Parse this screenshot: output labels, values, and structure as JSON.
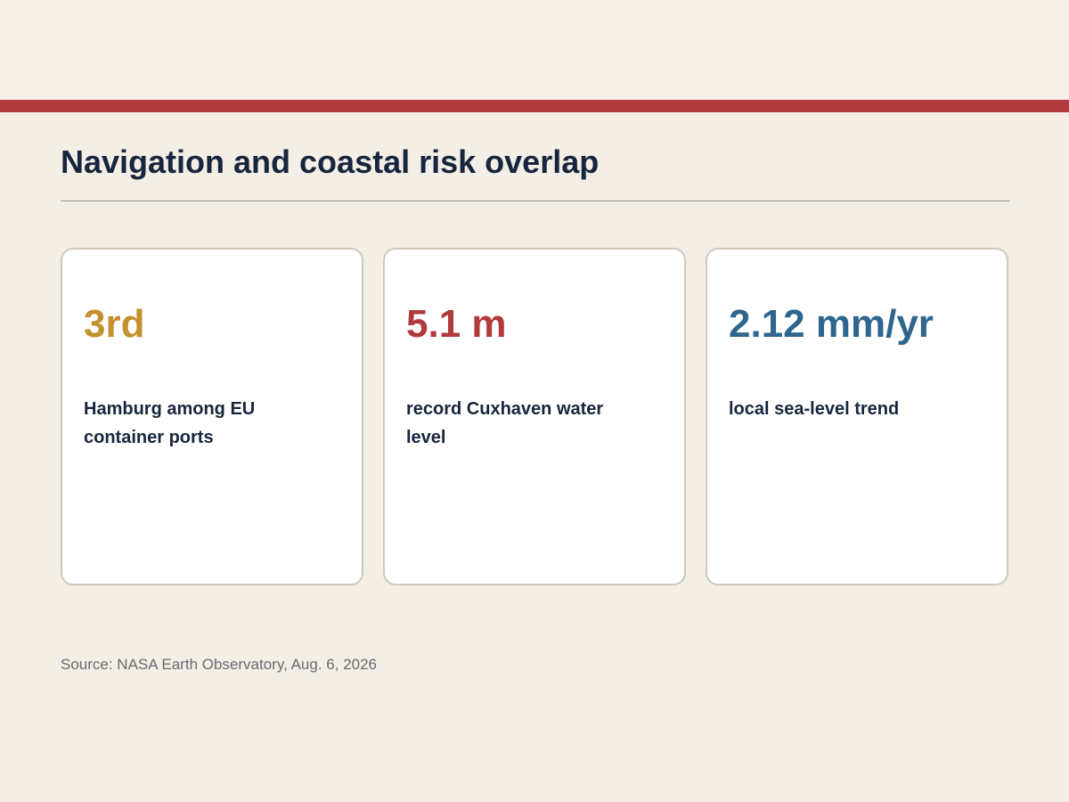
{
  "header": {
    "title": "Navigation and coastal risk overlap"
  },
  "cards": [
    {
      "value": "3rd",
      "label": "Hamburg among EU container ports",
      "color": "#c4912f"
    },
    {
      "value": "5.1 m",
      "label": "record Cuxhaven water level",
      "color": "#b23a3c"
    },
    {
      "value": "2.12 mm/yr",
      "label": "local sea-level trend",
      "color": "#2f668d"
    }
  ],
  "footer": {
    "source": "Source: NASA Earth Observatory, Aug. 6, 2026"
  },
  "colors": {
    "accent_bar": "#b23a3c",
    "title_text": "#17253d",
    "background": "#f3efe6"
  }
}
